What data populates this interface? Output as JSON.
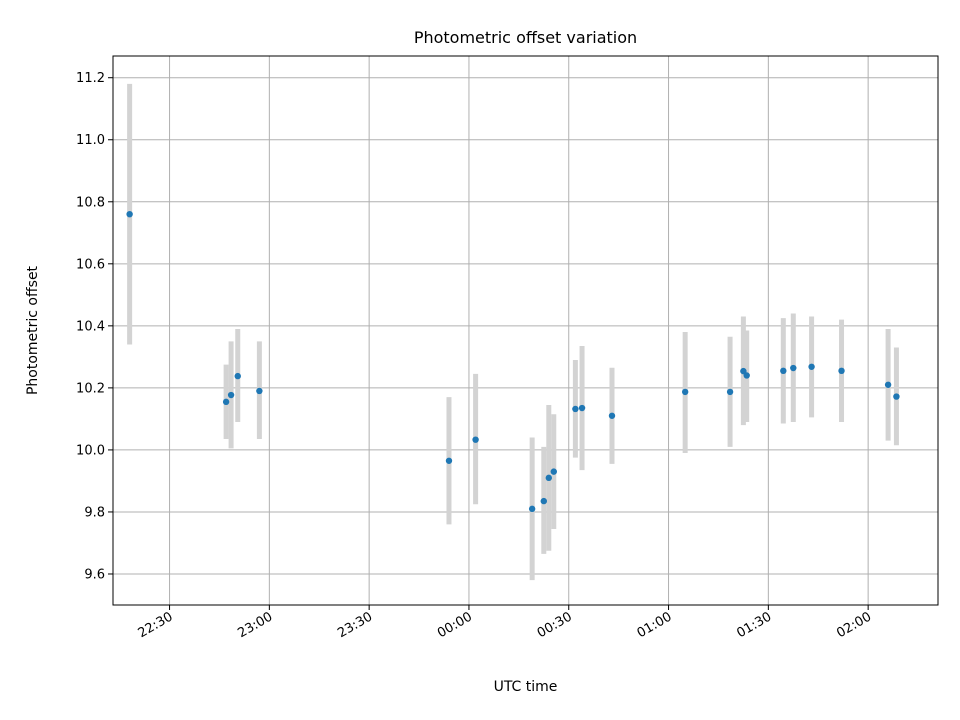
{
  "chart_data": {
    "type": "scatter",
    "title": "Photometric offset variation",
    "xlabel": "UTC time",
    "ylabel": "Photometric offset",
    "xlim": [
      "22:13",
      "02:21"
    ],
    "ylim": [
      9.5,
      11.27
    ],
    "grid": true,
    "legend": "none",
    "marker_color": "#1f77b4",
    "errorbar_color": "#d3d3d3",
    "x_ticks": [
      "22:30",
      "23:00",
      "23:30",
      "00:00",
      "00:30",
      "01:00",
      "01:30",
      "02:00"
    ],
    "y_ticks": [
      "9.6",
      "9.8",
      "10.0",
      "10.2",
      "10.4",
      "10.6",
      "10.8",
      "11.0",
      "11.2"
    ],
    "points": [
      {
        "x": "22:18",
        "y": 10.76,
        "yerr_low": 10.34,
        "yerr_high": 11.18
      },
      {
        "x": "22:47",
        "y": 10.155,
        "yerr_low": 10.035,
        "yerr_high": 10.275
      },
      {
        "x": "22:48.5",
        "y": 10.177,
        "yerr_low": 10.005,
        "yerr_high": 10.35
      },
      {
        "x": "22:50.5",
        "y": 10.238,
        "yerr_low": 10.09,
        "yerr_high": 10.39
      },
      {
        "x": "22:57",
        "y": 10.19,
        "yerr_low": 10.035,
        "yerr_high": 10.35
      },
      {
        "x": "23:54",
        "y": 9.965,
        "yerr_low": 9.76,
        "yerr_high": 10.17
      },
      {
        "x": "00:02",
        "y": 10.033,
        "yerr_low": 9.825,
        "yerr_high": 10.245
      },
      {
        "x": "00:19",
        "y": 9.81,
        "yerr_low": 9.58,
        "yerr_high": 10.04
      },
      {
        "x": "00:22.5",
        "y": 9.835,
        "yerr_low": 9.665,
        "yerr_high": 10.01
      },
      {
        "x": "00:24",
        "y": 9.91,
        "yerr_low": 9.675,
        "yerr_high": 10.145
      },
      {
        "x": "00:25.5",
        "y": 9.93,
        "yerr_low": 9.745,
        "yerr_high": 10.115
      },
      {
        "x": "00:32",
        "y": 10.132,
        "yerr_low": 9.975,
        "yerr_high": 10.29
      },
      {
        "x": "00:34",
        "y": 10.135,
        "yerr_low": 9.935,
        "yerr_high": 10.335
      },
      {
        "x": "00:43",
        "y": 10.11,
        "yerr_low": 9.955,
        "yerr_high": 10.265
      },
      {
        "x": "01:05",
        "y": 10.187,
        "yerr_low": 9.99,
        "yerr_high": 10.38
      },
      {
        "x": "01:18.5",
        "y": 10.187,
        "yerr_low": 10.01,
        "yerr_high": 10.365
      },
      {
        "x": "01:22.5",
        "y": 10.254,
        "yerr_low": 10.08,
        "yerr_high": 10.43
      },
      {
        "x": "01:23.5",
        "y": 10.24,
        "yerr_low": 10.09,
        "yerr_high": 10.385
      },
      {
        "x": "01:34.5",
        "y": 10.255,
        "yerr_low": 10.085,
        "yerr_high": 10.425
      },
      {
        "x": "01:37.5",
        "y": 10.264,
        "yerr_low": 10.09,
        "yerr_high": 10.44
      },
      {
        "x": "01:43",
        "y": 10.268,
        "yerr_low": 10.105,
        "yerr_high": 10.43
      },
      {
        "x": "01:52",
        "y": 10.255,
        "yerr_low": 10.09,
        "yerr_high": 10.42
      },
      {
        "x": "02:06",
        "y": 10.21,
        "yerr_low": 10.03,
        "yerr_high": 10.39
      },
      {
        "x": "02:08.5",
        "y": 10.172,
        "yerr_low": 10.015,
        "yerr_high": 10.33
      }
    ]
  }
}
